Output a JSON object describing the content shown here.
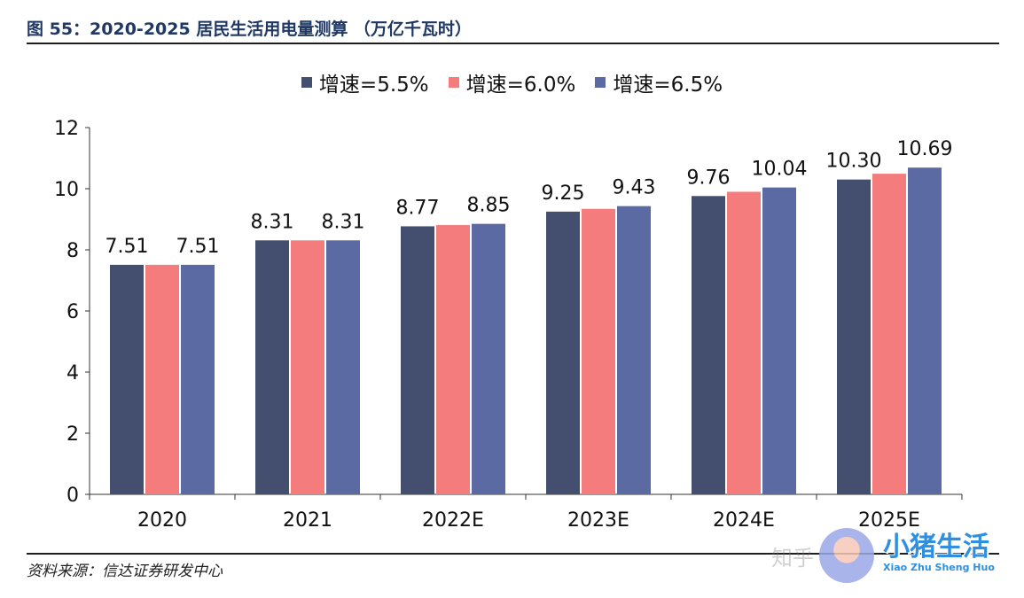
{
  "figure": {
    "title": "图 55：2020-2025 居民生活用电量测算 （万亿千瓦时）",
    "source": "资料来源：信达证券研发中心"
  },
  "watermark": {
    "zhihu": "知乎",
    "brand": "小猪生活",
    "pinyin": "Xiao Zhu Sheng Huo",
    "avatar_icon": "pig-avatar-icon"
  },
  "chart_data": {
    "type": "bar",
    "title": "",
    "xlabel": "",
    "ylabel": "",
    "categories": [
      "2020",
      "2021",
      "2022E",
      "2023E",
      "2024E",
      "2025E"
    ],
    "ylim": [
      0,
      12
    ],
    "yticks": [
      0,
      2,
      4,
      6,
      8,
      10,
      12
    ],
    "grid": false,
    "legend_position": "top-center",
    "series": [
      {
        "name": "增速=5.5%",
        "color": "#444e6e",
        "values": [
          7.51,
          8.31,
          8.77,
          9.25,
          9.76,
          10.3
        ]
      },
      {
        "name": "增速=6.0%",
        "color": "#f47c7c",
        "values": [
          7.51,
          8.31,
          8.81,
          9.34,
          9.9,
          10.49
        ]
      },
      {
        "name": "增速=6.5%",
        "color": "#5b6aa2",
        "values": [
          7.51,
          8.31,
          8.85,
          9.43,
          10.04,
          10.69
        ]
      }
    ],
    "data_labels": [
      {
        "category": "2020",
        "series": 0,
        "text": "7.51"
      },
      {
        "category": "2020",
        "series": 2,
        "text": "7.51"
      },
      {
        "category": "2021",
        "series": 0,
        "text": "8.31"
      },
      {
        "category": "2021",
        "series": 2,
        "text": "8.31"
      },
      {
        "category": "2022E",
        "series": 0,
        "text": "8.77"
      },
      {
        "category": "2022E",
        "series": 2,
        "text": "8.85"
      },
      {
        "category": "2023E",
        "series": 0,
        "text": "9.25"
      },
      {
        "category": "2023E",
        "series": 2,
        "text": "9.43"
      },
      {
        "category": "2024E",
        "series": 0,
        "text": "9.76"
      },
      {
        "category": "2024E",
        "series": 2,
        "text": "10.04"
      },
      {
        "category": "2025E",
        "series": 0,
        "text": "10.30"
      },
      {
        "category": "2025E",
        "series": 2,
        "text": "10.69"
      }
    ]
  }
}
